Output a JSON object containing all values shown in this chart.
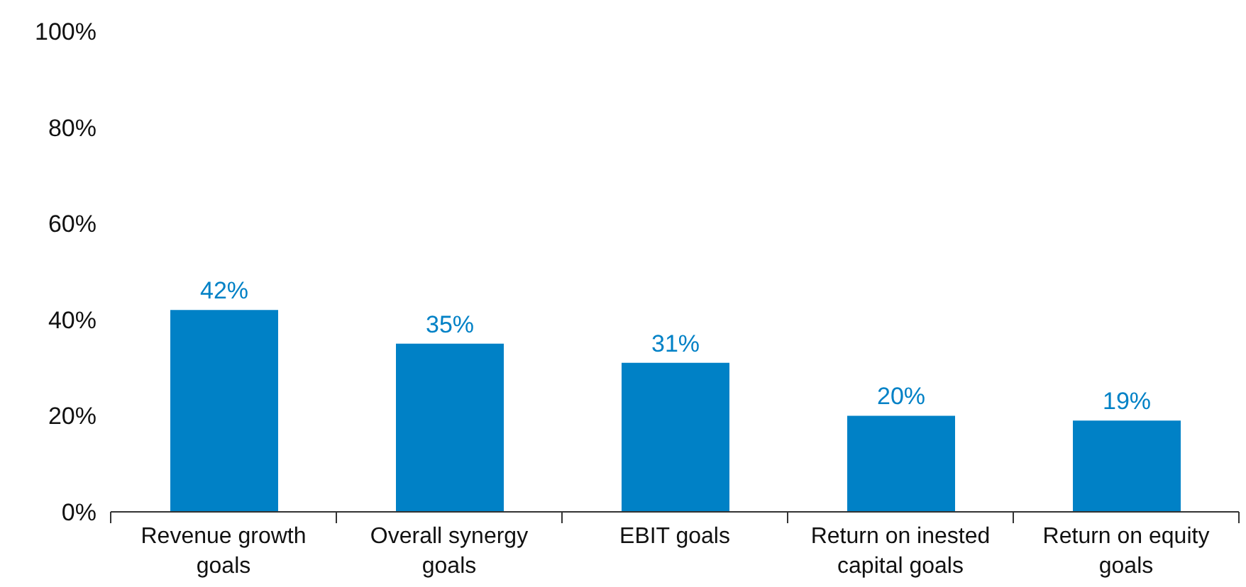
{
  "chart_data": {
    "type": "bar",
    "categories": [
      "Revenue growth goals",
      "Overall synergy goals",
      "EBIT goals",
      "Return on inested capital goals",
      "Return on equity goals"
    ],
    "values": [
      42,
      35,
      31,
      20,
      19
    ],
    "color": "#0081c6",
    "value_labels": [
      "42%",
      "35%",
      "31%",
      "20%",
      "19%"
    ],
    "ylim": [
      0,
      100
    ],
    "yticks": [
      {
        "value": 0,
        "label": "0%"
      },
      {
        "value": 20,
        "label": "20%"
      },
      {
        "value": 40,
        "label": "40%"
      },
      {
        "value": 60,
        "label": "60%"
      },
      {
        "value": 80,
        "label": "80%"
      },
      {
        "value": 100,
        "label": "100%"
      }
    ],
    "grid": false,
    "legend": false
  }
}
